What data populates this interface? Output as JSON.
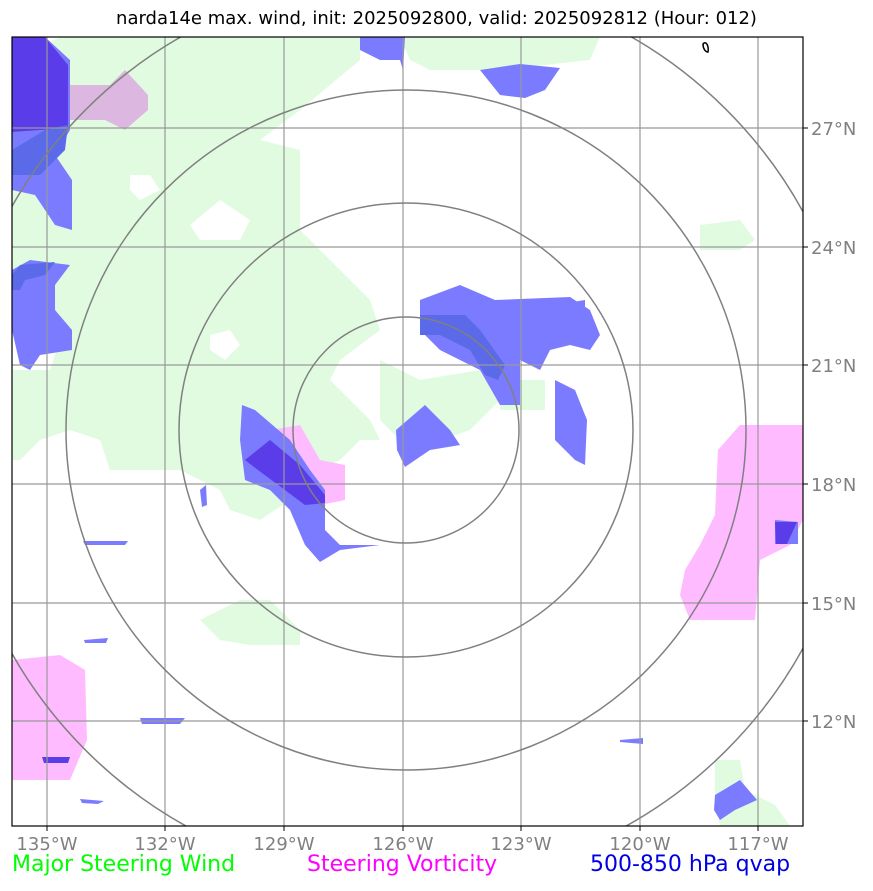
{
  "title": "narda14e max. wind, init: 2025092800, valid: 2025092812 (Hour: 012)",
  "map": {
    "lon_range": [
      -135.9,
      -115.8
    ],
    "lat_range": [
      9.3,
      29.4
    ],
    "storm_center": {
      "lon": -126.0,
      "lat": 19.4
    },
    "range_ring_count": 4,
    "x_ticks": [
      "135°W",
      "132°W",
      "129°W",
      "126°W",
      "123°W",
      "120°W",
      "117°W"
    ],
    "y_ticks": [
      "27°N",
      "24°N",
      "21°N",
      "18°N",
      "15°N",
      "12°N"
    ],
    "grid": true
  },
  "legend": {
    "wind_label": "Major Steering Wind",
    "vorticity_label": "Steering Vorticity",
    "qvap_label": "500-850 hPa qvap"
  },
  "colors": {
    "wind_fill": "#e0fbe0",
    "vorticity_fill": "#ffbbff",
    "qvap_fill": "#7b7bff",
    "qvap_dark": "#5a3ce8",
    "overlap": "#dcb8e0",
    "ring": "#808080",
    "grid": "#999999",
    "legend_wind": "#00ff00",
    "legend_vorticity": "#ff00ff",
    "legend_qvap": "#0000e0"
  }
}
